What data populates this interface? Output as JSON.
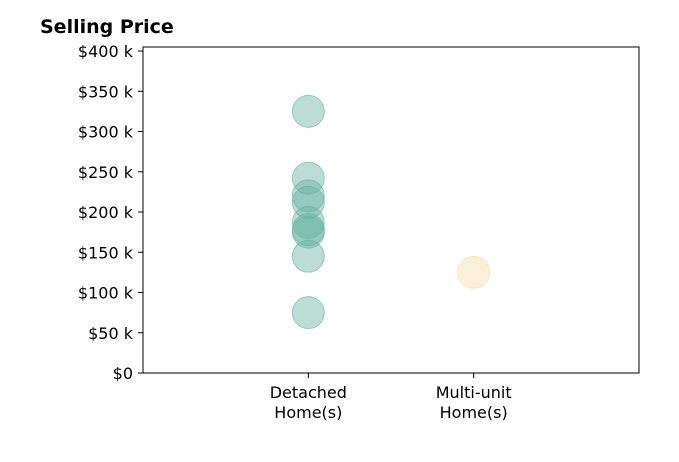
{
  "chart_data": {
    "type": "scatter",
    "title": "Selling Price",
    "xlabel": "",
    "ylabel": "",
    "categories": [
      "Detached\nHome(s)",
      "Multi-unit\nHome(s)"
    ],
    "x_range": [
      0,
      3
    ],
    "ylim": [
      0,
      405000
    ],
    "y_ticks": [
      {
        "value": 0,
        "label": "$0"
      },
      {
        "value": 50000,
        "label": "$50 k"
      },
      {
        "value": 100000,
        "label": "$100 k"
      },
      {
        "value": 150000,
        "label": "$150 k"
      },
      {
        "value": 200000,
        "label": "$200 k"
      },
      {
        "value": 250000,
        "label": "$250 k"
      },
      {
        "value": 300000,
        "label": "$300 k"
      },
      {
        "value": 350000,
        "label": "$350 k"
      },
      {
        "value": 400000,
        "label": "$400 k"
      }
    ],
    "grid": false,
    "legend": "none",
    "series": [
      {
        "category_index": 1,
        "color": "#69b3a2",
        "values": [
          325000,
          242000,
          220000,
          212000,
          187000,
          178000,
          175000,
          145000,
          75000
        ]
      },
      {
        "category_index": 2,
        "color": "#f3dca8",
        "values": [
          125000
        ]
      }
    ]
  }
}
